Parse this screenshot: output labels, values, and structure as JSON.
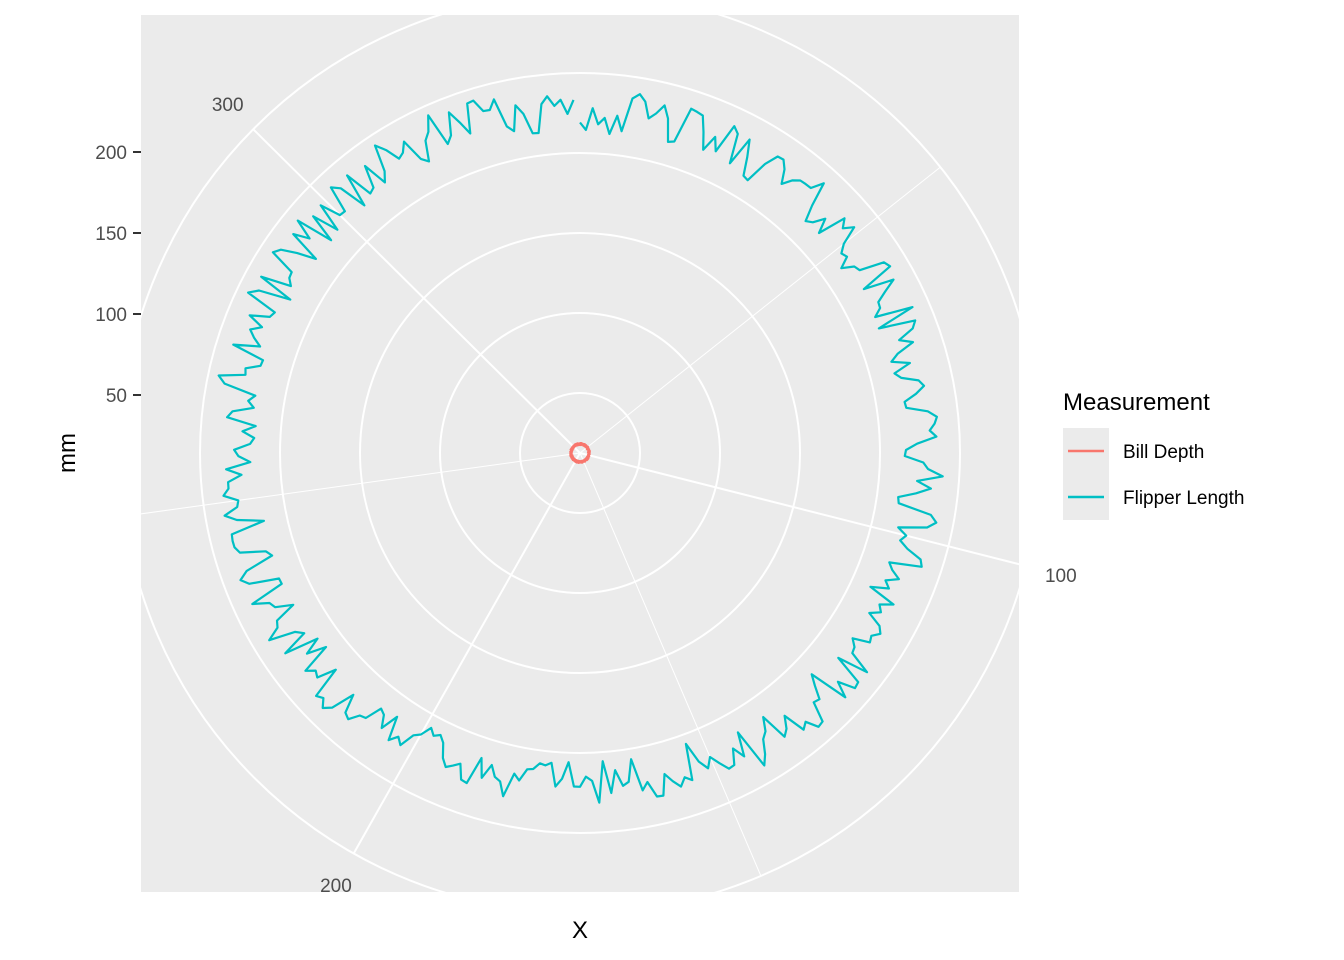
{
  "chart_data": {
    "type": "line",
    "coord": "polar",
    "xlabel": "X",
    "ylabel": "mm",
    "theta_ticks": [
      100,
      200,
      300
    ],
    "theta_range": [
      1,
      342
    ],
    "r_ticks": [
      50,
      100,
      150,
      200
    ],
    "r_range": [
      0,
      230
    ],
    "grid": true,
    "legend": {
      "title": "Measurement",
      "placement": "right"
    },
    "series": [
      {
        "name": "Bill Depth",
        "color": "#F8766D",
        "x_start": 1,
        "x_end": 342,
        "mean": 17.2,
        "spread": 2.0
      },
      {
        "name": "Flipper Length",
        "color": "#00BFC4",
        "x_start": 1,
        "x_end": 342,
        "mean": 201,
        "spread": 14
      }
    ]
  }
}
